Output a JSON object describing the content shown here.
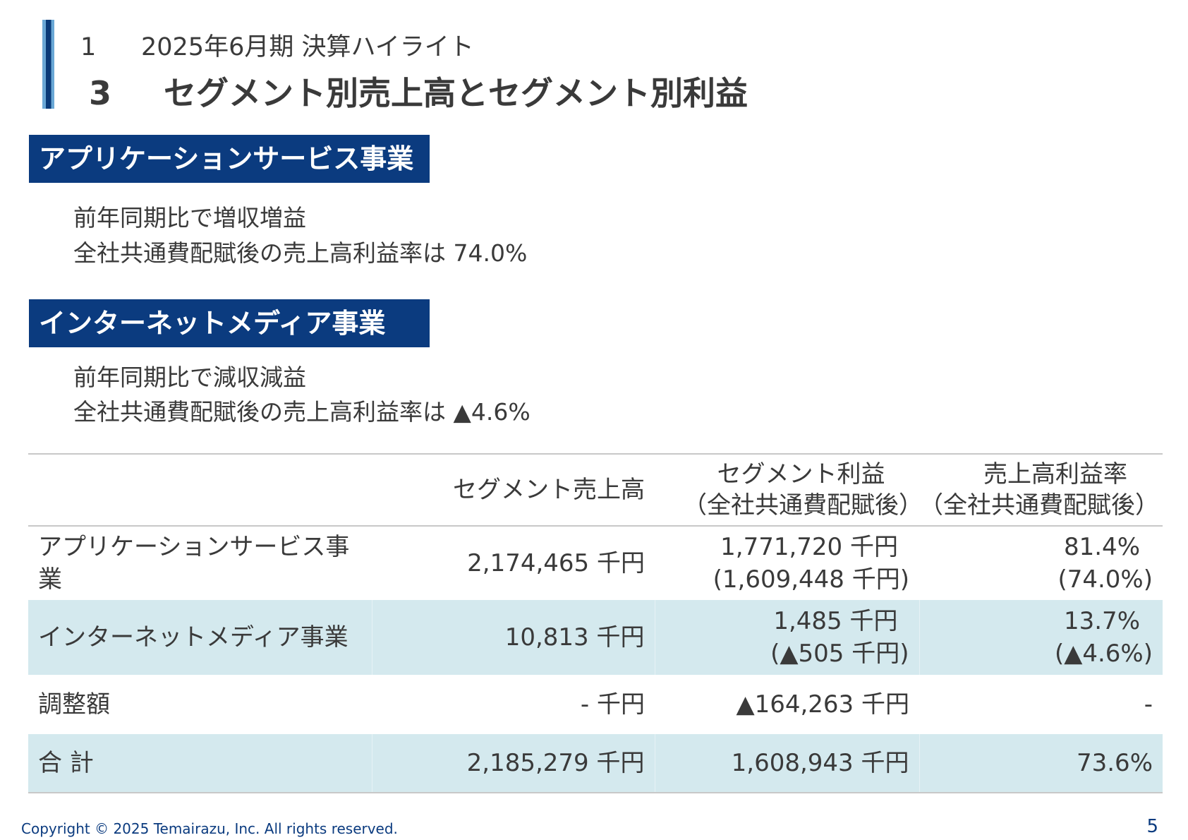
{
  "header": {
    "chapter_num": "1",
    "chapter_title": "2025年6月期 決算ハイライト",
    "section_num": "3",
    "section_title": "セグメント別売上高とセグメント別利益"
  },
  "segments": [
    {
      "title": "アプリケーションサービス事業",
      "bullets": [
        "前年同期比で増収増益",
        "全社共通費配賦後の売上高利益率は 74.0%"
      ]
    },
    {
      "title": "インターネットメディア事業",
      "bullets": [
        "前年同期比で減収減益",
        "全社共通費配賦後の売上高利益率は ▲4.6%"
      ]
    }
  ],
  "table": {
    "headers": {
      "sales": "セグメント売上高",
      "profit_l1": "セグメント利益",
      "profit_l2": "（全社共通費配賦後）",
      "rate_l1": "売上高利益率",
      "rate_l2": "（全社共通費配賦後）"
    },
    "rows": [
      {
        "name": "アプリケーションサービス事業",
        "sales": "2,174,465 千円",
        "profit": "1,771,720 千円",
        "profit_alloc": "(1,609,448 千円)",
        "rate": "81.4%",
        "rate_alloc": "(74.0%)"
      },
      {
        "name": "インターネットメディア事業",
        "sales": "10,813 千円",
        "profit": "1,485 千円",
        "profit_alloc": "(▲505 千円)",
        "rate": "13.7%",
        "rate_alloc": "(▲4.6%)"
      },
      {
        "name": "調整額",
        "sales": "- 千円",
        "profit": "▲164,263 千円",
        "rate": "-"
      },
      {
        "name": "合 計",
        "sales": "2,185,279 千円",
        "profit": "1,608,943 千円",
        "rate": "73.6%"
      }
    ]
  },
  "footer": {
    "copyright": "Copyright © 2025 Temairazu, Inc. All rights reserved.",
    "page_number": "5"
  },
  "colors": {
    "navy": "#0b3b7f",
    "band": "#d4e9ee",
    "text": "#3a3a3a"
  }
}
